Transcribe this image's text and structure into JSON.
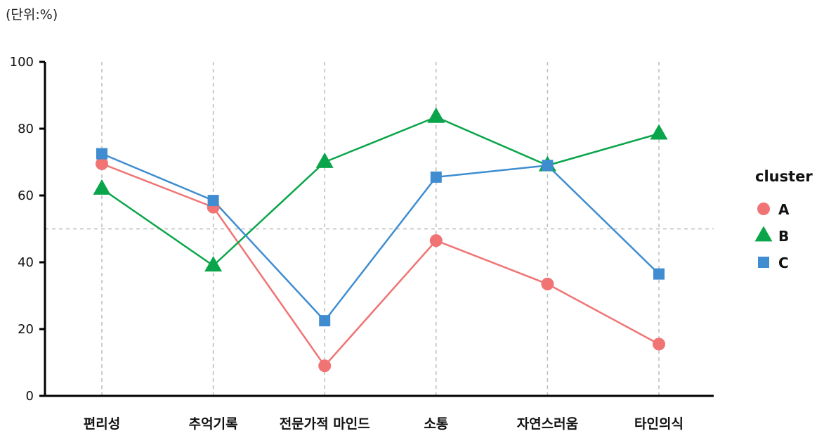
{
  "unit_label": "(단위:%)",
  "chart_data": {
    "type": "line",
    "categories": [
      "편리성",
      "추억기록",
      "전문가적 마인드",
      "소통",
      "자연스러움",
      "타인의식"
    ],
    "series": [
      {
        "name": "A",
        "values": [
          69.5,
          56.5,
          9,
          46.5,
          33.5,
          15.5
        ],
        "color": "#f07474",
        "marker": "circle"
      },
      {
        "name": "B",
        "values": [
          62,
          39,
          70,
          83.5,
          69,
          78.5
        ],
        "color": "#0aa54a",
        "marker": "triangle"
      },
      {
        "name": "C",
        "values": [
          72.5,
          58.5,
          22.5,
          65.5,
          69,
          36.5
        ],
        "color": "#3f8dd0",
        "marker": "square"
      }
    ],
    "yticks": [
      "0",
      "20",
      "40",
      "60",
      "80",
      "100"
    ],
    "ylim": [
      0,
      100
    ],
    "reference_line": 50,
    "grid": "vertical-dashed",
    "legend": {
      "title": "cluster",
      "position": "right"
    }
  }
}
